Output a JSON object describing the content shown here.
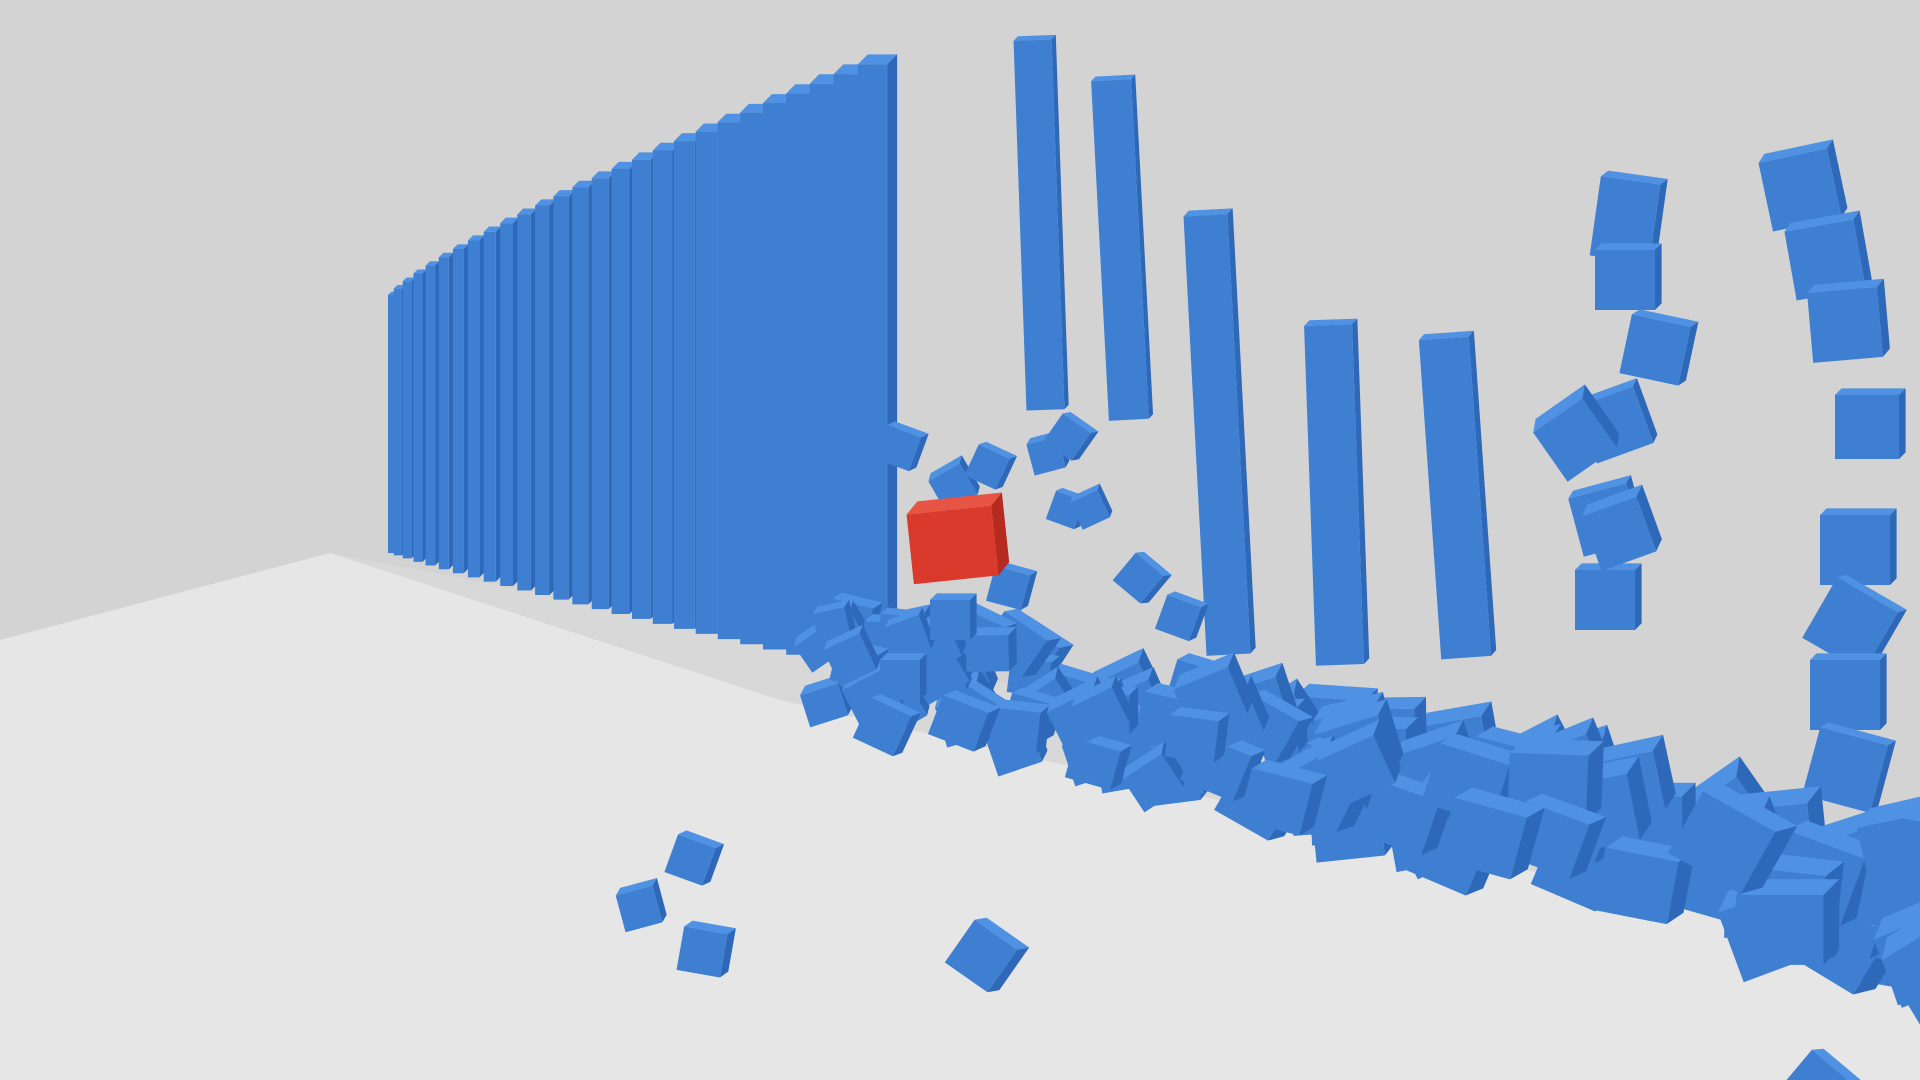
{
  "scene": {
    "colors": {
      "background": "#d3d3d3",
      "platform_top": "#e6e6e6",
      "platform_edge": "#bdbdbd",
      "shadow": "#a9acb1",
      "cube_front": "#3e7fd2",
      "cube_top": "#4f91e2",
      "cube_side": "#2e68b8",
      "projectile_front": "#d93a2b",
      "projectile_top": "#e85444",
      "projectile_side": "#b52b1f"
    },
    "wall_rows": 31,
    "projectile_count": 1,
    "falling_debris": true
  }
}
